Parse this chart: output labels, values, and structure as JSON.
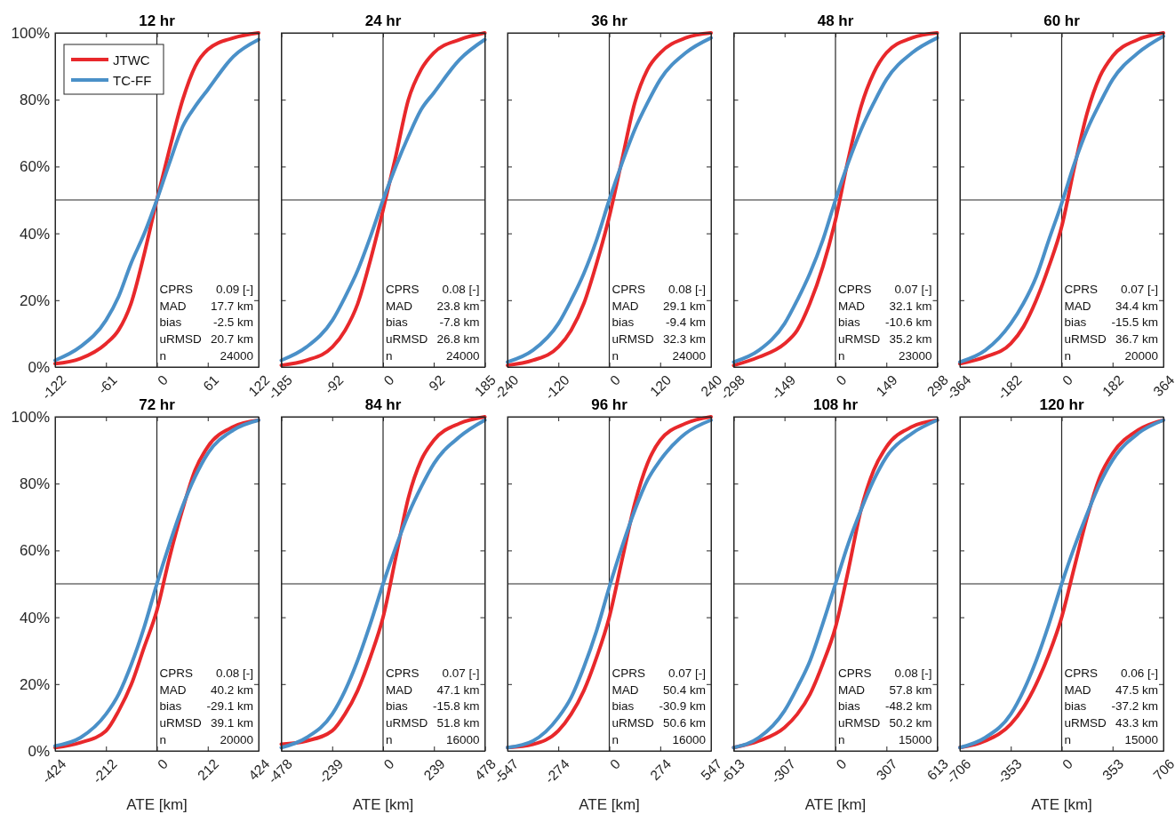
{
  "chart_data": [
    {
      "type": "line",
      "title": "12 hr",
      "x": [
        -122,
        -92,
        -61,
        -46,
        -31,
        -15,
        0,
        15,
        31,
        46,
        61,
        92,
        122
      ],
      "xlim": [
        -122,
        122
      ],
      "xticks": [
        -122,
        -61,
        0,
        61,
        122
      ],
      "ylim": [
        0,
        100
      ],
      "yticks": [
        {
          "value": 0,
          "label": "0%"
        },
        {
          "value": 20,
          "label": "20%"
        },
        {
          "value": 40,
          "label": "40%"
        },
        {
          "value": 60,
          "label": "60%"
        },
        {
          "value": 80,
          "label": "80%"
        },
        {
          "value": 100,
          "label": "100%"
        }
      ],
      "legend": "top left",
      "series": [
        {
          "name": "JTWC",
          "color": "#e8282b",
          "values": [
            1,
            2.5,
            7,
            11,
            19,
            34,
            50,
            65,
            80,
            90,
            95,
            98.5,
            100
          ]
        },
        {
          "name": "TC-FF",
          "color": "#4a90c8",
          "values": [
            2,
            6,
            14,
            21,
            31,
            40,
            50,
            61,
            72,
            78,
            83,
            93,
            98
          ]
        }
      ],
      "ref_lines": [
        {
          "axis": "x",
          "value": 0,
          "color": "#262626"
        },
        {
          "axis": "y",
          "value": 50,
          "color": "#262626"
        }
      ],
      "annotations": [
        "CPRS",
        "0.09 [-]",
        "MAD",
        "17.7 km",
        "bias",
        "-2.5 km",
        "uRMSD",
        "20.7 km",
        "n",
        "24000"
      ]
    },
    {
      "type": "line",
      "title": "24 hr",
      "x": [
        -185,
        -139,
        -92,
        -69,
        -46,
        -23,
        0,
        23,
        46,
        69,
        92,
        139,
        185
      ],
      "xlim": [
        -185,
        185
      ],
      "xticks": [
        -185,
        -92,
        0,
        92,
        185
      ],
      "ylim": [
        0,
        100
      ],
      "yticks": [
        0,
        20,
        40,
        60,
        80,
        100
      ],
      "tick_labels": "x",
      "series": [
        {
          "color": "#e8282b",
          "values": [
            0.5,
            2,
            6,
            11,
            19,
            32,
            47,
            63,
            80,
            89,
            94,
            98,
            100
          ]
        },
        {
          "color": "#4a90c8",
          "values": [
            2,
            6,
            14,
            21,
            29,
            39,
            50,
            60,
            69,
            77,
            82,
            92,
            98
          ]
        }
      ],
      "ref_lines": [
        {
          "axis": "x",
          "value": 0,
          "color": "#262626"
        },
        {
          "axis": "y",
          "value": 50,
          "color": "#262626"
        }
      ],
      "annotations": [
        "CPRS",
        "0.08 [-]",
        "MAD",
        "23.8 km",
        "bias",
        "-7.8 km",
        "uRMSD",
        "26.8 km",
        "n",
        "24000"
      ]
    },
    {
      "type": "line",
      "title": "36 hr",
      "x": [
        -240,
        -180,
        -120,
        -90,
        -60,
        -30,
        0,
        30,
        60,
        90,
        120,
        180,
        240
      ],
      "xlim": [
        -240,
        240
      ],
      "xticks": [
        -240,
        -120,
        0,
        120,
        240
      ],
      "ylim": [
        0,
        100
      ],
      "yticks": [
        0,
        20,
        40,
        60,
        80,
        100
      ],
      "tick_labels": "x",
      "series": [
        {
          "color": "#e8282b",
          "values": [
            0.5,
            2,
            6,
            11,
            19,
            31,
            45,
            62,
            79,
            89,
            94,
            98.5,
            100
          ]
        },
        {
          "color": "#4a90c8",
          "values": [
            1.5,
            5,
            13,
            20,
            28,
            38,
            50,
            61,
            71,
            79,
            86,
            94,
            98.5
          ]
        }
      ],
      "ref_lines": [
        {
          "axis": "x",
          "value": 0,
          "color": "#262626"
        },
        {
          "axis": "y",
          "value": 50,
          "color": "#262626"
        }
      ],
      "annotations": [
        "CPRS",
        "0.08 [-]",
        "MAD",
        "29.1 km",
        "bias",
        "-9.4 km",
        "uRMSD",
        "32.3 km",
        "n",
        "24000"
      ]
    },
    {
      "type": "line",
      "title": "48 hr",
      "x": [
        -298,
        -224,
        -149,
        -112,
        -75,
        -37,
        0,
        37,
        75,
        112,
        149,
        224,
        298
      ],
      "xlim": [
        -298,
        298
      ],
      "xticks": [
        -298,
        -149,
        0,
        149,
        298
      ],
      "ylim": [
        0,
        100
      ],
      "yticks": [
        0,
        20,
        40,
        60,
        80,
        100
      ],
      "tick_labels": "x",
      "series": [
        {
          "color": "#e8282b",
          "values": [
            0.5,
            3,
            7,
            11,
            19,
            30,
            44,
            62,
            78,
            88,
            94,
            98.5,
            100
          ]
        },
        {
          "color": "#4a90c8",
          "values": [
            1.5,
            5,
            13,
            20,
            28,
            38,
            50,
            61,
            71,
            79,
            86,
            94,
            98.5
          ]
        }
      ],
      "ref_lines": [
        {
          "axis": "x",
          "value": 0,
          "color": "#262626"
        },
        {
          "axis": "y",
          "value": 50,
          "color": "#262626"
        }
      ],
      "annotations": [
        "CPRS",
        "0.07 [-]",
        "MAD",
        "32.1 km",
        "bias",
        "-10.6 km",
        "uRMSD",
        "35.2 km",
        "n",
        "23000"
      ]
    },
    {
      "type": "line",
      "title": "60 hr",
      "x": [
        -364,
        -273,
        -182,
        -137,
        -91,
        -46,
        0,
        46,
        91,
        137,
        182,
        273,
        364
      ],
      "xlim": [
        -364,
        364
      ],
      "xticks": [
        -364,
        -182,
        0,
        182,
        364
      ],
      "ylim": [
        0,
        100
      ],
      "yticks": [
        0,
        20,
        40,
        60,
        80,
        100
      ],
      "tick_labels": "x",
      "series": [
        {
          "color": "#e8282b",
          "values": [
            1,
            3,
            7,
            12,
            20,
            30,
            42,
            60,
            76,
            87,
            93,
            98,
            100
          ]
        },
        {
          "color": "#4a90c8",
          "values": [
            1.5,
            5,
            13,
            19,
            27,
            38,
            49,
            61,
            71,
            79,
            86,
            94,
            99
          ]
        }
      ],
      "ref_lines": [
        {
          "axis": "x",
          "value": 0,
          "color": "#262626"
        },
        {
          "axis": "y",
          "value": 50,
          "color": "#262626"
        }
      ],
      "annotations": [
        "CPRS",
        "0.07 [-]",
        "MAD",
        "34.4 km",
        "bias",
        "-15.5 km",
        "uRMSD",
        "36.7 km",
        "n",
        "20000"
      ]
    },
    {
      "type": "line",
      "title": "72 hr",
      "xlabel": "ATE [km]",
      "x": [
        -424,
        -318,
        -212,
        -159,
        -106,
        -53,
        0,
        53,
        106,
        159,
        212,
        318,
        424
      ],
      "xlim": [
        -424,
        424
      ],
      "xticks": [
        -424,
        -212,
        0,
        212,
        424
      ],
      "ylim": [
        0,
        100
      ],
      "yticks": [
        {
          "value": 0,
          "label": "0%"
        },
        {
          "value": 20,
          "label": "20%"
        },
        {
          "value": 40,
          "label": "40%"
        },
        {
          "value": 60,
          "label": "60%"
        },
        {
          "value": 80,
          "label": "80%"
        },
        {
          "value": 100,
          "label": "100%"
        }
      ],
      "series": [
        {
          "color": "#e8282b",
          "values": [
            1,
            2.5,
            6,
            12,
            20,
            31,
            42,
            58,
            72,
            84,
            91,
            97,
            99
          ]
        },
        {
          "color": "#4a90c8",
          "values": [
            1.5,
            4,
            11,
            17,
            26,
            37,
            50,
            62,
            73,
            82,
            89,
            96,
            99
          ]
        }
      ],
      "ref_lines": [
        {
          "axis": "x",
          "value": 0,
          "color": "#262626"
        },
        {
          "axis": "y",
          "value": 50,
          "color": "#262626"
        }
      ],
      "annotations": [
        "CPRS",
        "0.08 [-]",
        "MAD",
        "40.2 km",
        "bias",
        "-29.1 km",
        "uRMSD",
        "39.1 km",
        "n",
        "20000"
      ]
    },
    {
      "type": "line",
      "title": "84 hr",
      "xlabel": "ATE [km]",
      "x": [
        -478,
        -359,
        -239,
        -179,
        -120,
        -60,
        0,
        60,
        120,
        179,
        239,
        359,
        478
      ],
      "xlim": [
        -478,
        478
      ],
      "xticks": [
        -478,
        -239,
        0,
        239,
        478
      ],
      "ylim": [
        0,
        100
      ],
      "yticks": [
        0,
        20,
        40,
        60,
        80,
        100
      ],
      "tick_labels": "x",
      "series": [
        {
          "color": "#e8282b",
          "values": [
            2,
            3,
            6,
            11,
            18,
            28,
            40,
            58,
            76,
            87,
            93,
            98,
            100
          ]
        },
        {
          "color": "#4a90c8",
          "values": [
            1,
            4,
            11,
            18,
            27,
            38,
            50,
            61,
            71,
            79,
            86,
            94,
            99
          ]
        }
      ],
      "ref_lines": [
        {
          "axis": "x",
          "value": 0,
          "color": "#262626"
        },
        {
          "axis": "y",
          "value": 50,
          "color": "#262626"
        }
      ],
      "annotations": [
        "CPRS",
        "0.07 [-]",
        "MAD",
        "47.1 km",
        "bias",
        "-15.8 km",
        "uRMSD",
        "51.8 km",
        "n",
        "16000"
      ]
    },
    {
      "type": "line",
      "title": "96 hr",
      "xlabel": "ATE [km]",
      "x": [
        -547,
        -410,
        -274,
        -205,
        -137,
        -68,
        0,
        68,
        137,
        205,
        274,
        410,
        547
      ],
      "xlim": [
        -547,
        547
      ],
      "xticks": [
        -547,
        -274,
        0,
        274,
        547
      ],
      "ylim": [
        0,
        100
      ],
      "yticks": [
        0,
        20,
        40,
        60,
        80,
        100
      ],
      "tick_labels": "x",
      "series": [
        {
          "color": "#e8282b",
          "values": [
            1,
            2,
            6,
            11,
            18,
            28,
            40,
            57,
            74,
            86,
            93,
            98,
            100
          ]
        },
        {
          "color": "#4a90c8",
          "values": [
            1,
            3,
            10,
            16,
            25,
            36,
            49,
            61,
            72,
            81,
            87,
            95,
            99
          ]
        }
      ],
      "ref_lines": [
        {
          "axis": "x",
          "value": 0,
          "color": "#262626"
        },
        {
          "axis": "y",
          "value": 50,
          "color": "#262626"
        }
      ],
      "annotations": [
        "CPRS",
        "0.07 [-]",
        "MAD",
        "50.4 km",
        "bias",
        "-30.9 km",
        "uRMSD",
        "50.6 km",
        "n",
        "16000"
      ]
    },
    {
      "type": "line",
      "title": "108 hr",
      "xlabel": "ATE [km]",
      "x": [
        -613,
        -460,
        -307,
        -230,
        -153,
        -77,
        0,
        77,
        153,
        230,
        307,
        460,
        613
      ],
      "xlim": [
        -613,
        613
      ],
      "xticks": [
        -613,
        -307,
        0,
        307,
        613
      ],
      "ylim": [
        0,
        100
      ],
      "yticks": [
        0,
        20,
        40,
        60,
        80,
        100
      ],
      "tick_labels": "x",
      "series": [
        {
          "color": "#e8282b",
          "values": [
            1,
            3,
            7,
            11,
            17,
            26,
            37,
            54,
            72,
            84,
            91,
            97,
            99
          ]
        },
        {
          "color": "#4a90c8",
          "values": [
            1,
            4,
            12,
            19,
            27,
            38,
            50,
            62,
            72,
            81,
            88,
            95,
            99
          ]
        }
      ],
      "ref_lines": [
        {
          "axis": "x",
          "value": 0,
          "color": "#262626"
        },
        {
          "axis": "y",
          "value": 50,
          "color": "#262626"
        }
      ],
      "annotations": [
        "CPRS",
        "0.08 [-]",
        "MAD",
        "57.8 km",
        "bias",
        "-48.2 km",
        "uRMSD",
        "50.2 km",
        "n",
        "15000"
      ]
    },
    {
      "type": "line",
      "title": "120 hr",
      "xlabel": "ATE [km]",
      "x": [
        -706,
        -530,
        -353,
        -265,
        -177,
        -88,
        0,
        88,
        177,
        265,
        353,
        530,
        706
      ],
      "xlim": [
        -706,
        706
      ],
      "xticks": [
        -706,
        -353,
        0,
        353,
        706
      ],
      "ylim": [
        0,
        100
      ],
      "yticks": [
        0,
        20,
        40,
        60,
        80,
        100
      ],
      "tick_labels": "x",
      "series": [
        {
          "color": "#e8282b",
          "values": [
            1,
            3,
            8,
            13,
            20,
            29,
            40,
            55,
            70,
            82,
            89,
            96,
            99
          ]
        },
        {
          "color": "#4a90c8",
          "values": [
            1,
            4,
            11,
            18,
            27,
            38,
            50,
            61,
            71,
            80,
            87,
            95,
            99
          ]
        }
      ],
      "ref_lines": [
        {
          "axis": "x",
          "value": 0,
          "color": "#262626"
        },
        {
          "axis": "y",
          "value": 50,
          "color": "#262626"
        }
      ],
      "annotations": [
        "CPRS",
        "0.06 [-]",
        "MAD",
        "47.5 km",
        "bias",
        "-37.2 km",
        "uRMSD",
        "43.3 km",
        "n",
        "15000"
      ]
    }
  ]
}
